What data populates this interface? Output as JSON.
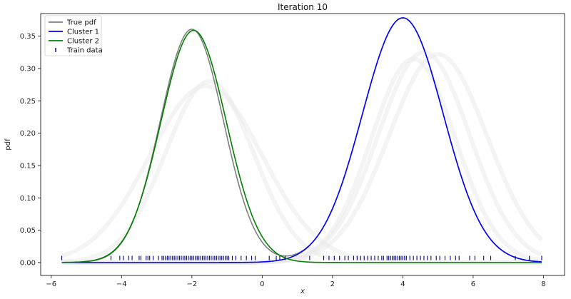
{
  "chart_data": {
    "type": "line",
    "title": "Iteration 10",
    "xlabel": "x",
    "ylabel": "pdf",
    "xlim": [
      -6.3,
      8.6
    ],
    "ylim": [
      -0.02,
      0.385
    ],
    "xticks": [
      -6,
      -4,
      -2,
      0,
      2,
      4,
      6,
      8
    ],
    "xtick_labels": [
      "−6",
      "−4",
      "−2",
      "0",
      "2",
      "4",
      "6",
      "8"
    ],
    "yticks": [
      0.0,
      0.05,
      0.1,
      0.15,
      0.2,
      0.25,
      0.3,
      0.35
    ],
    "ytick_labels": [
      "0.00",
      "0.05",
      "0.10",
      "0.15",
      "0.20",
      "0.25",
      "0.30",
      "0.35"
    ],
    "grid": false,
    "legend_position": "top-left",
    "colors": {
      "true_pdf": "#808080",
      "cluster_1": "#0000ff",
      "cluster_2": "#008000",
      "train_data": "#00007a",
      "ghost": "#eaeaea"
    },
    "series": [
      {
        "name": "True pdf",
        "kind": "mixture",
        "x_range": [
          -5.7,
          7.95
        ],
        "components": [
          {
            "mu": -2.0,
            "sigma": 0.9,
            "weight": 0.82
          },
          {
            "mu": 4.0,
            "sigma": 1.15,
            "weight": 0.86
          }
        ]
      },
      {
        "name": "Cluster 1",
        "kind": "gaussian",
        "x_range": [
          -5.7,
          7.95
        ],
        "mu": 4.0,
        "sigma": 1.15,
        "weight": 0.86
      },
      {
        "name": "Cluster 2",
        "kind": "gaussian",
        "x_range": [
          -5.7,
          7.95
        ],
        "mu": -1.95,
        "sigma": 0.93,
        "weight": 0.816
      },
      {
        "name": "Train data",
        "kind": "rug",
        "y": 0.007,
        "points": [
          -5.7,
          -4.3,
          -4.05,
          -3.95,
          -3.8,
          -3.7,
          -3.5,
          -3.45,
          -3.3,
          -3.25,
          -3.2,
          -3.1,
          -2.95,
          -2.85,
          -2.8,
          -2.75,
          -2.7,
          -2.65,
          -2.6,
          -2.55,
          -2.5,
          -2.45,
          -2.4,
          -2.35,
          -2.3,
          -2.25,
          -2.2,
          -2.15,
          -2.1,
          -2.05,
          -2.0,
          -1.95,
          -1.9,
          -1.85,
          -1.8,
          -1.75,
          -1.7,
          -1.65,
          -1.6,
          -1.55,
          -1.5,
          -1.45,
          -1.4,
          -1.35,
          -1.3,
          -1.25,
          -1.2,
          -1.15,
          -1.1,
          -1.05,
          -1.0,
          -0.95,
          -0.85,
          -0.75,
          -0.6,
          -0.45,
          -0.3,
          -0.2,
          0.2,
          0.4,
          0.5,
          0.65,
          1.35,
          1.75,
          1.9,
          2.05,
          2.2,
          2.35,
          2.45,
          2.6,
          2.7,
          2.8,
          2.9,
          3.0,
          3.1,
          3.2,
          3.3,
          3.4,
          3.45,
          3.55,
          3.6,
          3.65,
          3.7,
          3.75,
          3.8,
          3.85,
          3.9,
          3.95,
          4.0,
          4.05,
          4.1,
          4.2,
          4.3,
          4.4,
          4.5,
          4.6,
          4.7,
          4.8,
          4.95,
          5.05,
          5.2,
          5.35,
          5.5,
          5.6,
          5.9,
          6.05,
          6.3,
          6.5,
          7.2,
          7.6,
          7.95
        ]
      }
    ],
    "ghost_curves": [
      {
        "mu": -1.5,
        "sigma": 1.25,
        "weight": 0.8
      },
      {
        "mu": -1.6,
        "sigma": 1.6,
        "weight": 0.78
      },
      {
        "mu": 4.3,
        "sigma": 1.2,
        "weight": 0.9
      },
      {
        "mu": 4.6,
        "sigma": 1.3,
        "weight": 0.93
      },
      {
        "mu": 5.0,
        "sigma": 1.4,
        "weight": 0.92
      }
    ]
  }
}
